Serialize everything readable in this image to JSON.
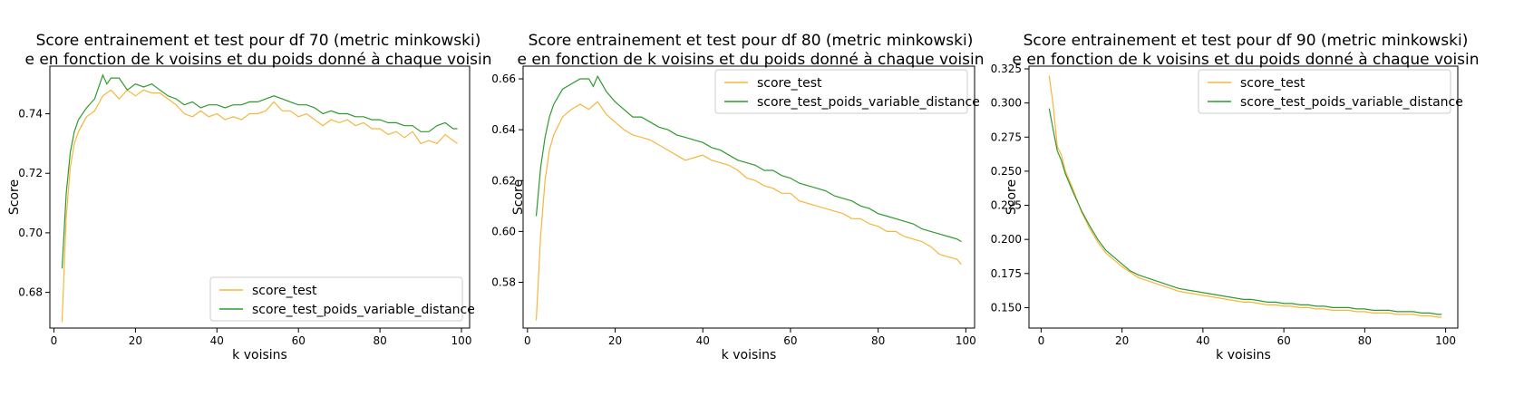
{
  "colors": {
    "score_test": "#f6b63c",
    "score_test_poids": "#2e9a2e"
  },
  "chart_data": [
    {
      "type": "line",
      "title_lines": [
        "Score entrainement et test pour df 70 (metric minkowski)",
        "e en fonction de k voisins et du poids donné à chaque voisin"
      ],
      "xlabel": "k voisins",
      "ylabel": "Score",
      "xlim": [
        -1,
        102
      ],
      "ylim": [
        0.668,
        0.756
      ],
      "xticks": [
        0,
        20,
        40,
        60,
        80,
        100
      ],
      "yticks": [
        0.68,
        0.7,
        0.72,
        0.74
      ],
      "legend_position": "lower-right",
      "series": [
        {
          "name": "score_test",
          "x": [
            2,
            3,
            4,
            5,
            6,
            8,
            10,
            12,
            14,
            16,
            18,
            20,
            22,
            24,
            26,
            28,
            30,
            32,
            34,
            36,
            38,
            40,
            42,
            44,
            46,
            48,
            50,
            52,
            54,
            56,
            58,
            60,
            62,
            64,
            66,
            68,
            70,
            72,
            74,
            76,
            78,
            80,
            82,
            84,
            86,
            88,
            90,
            92,
            94,
            96,
            98,
            99
          ],
          "y": [
            0.67,
            0.705,
            0.722,
            0.73,
            0.734,
            0.739,
            0.741,
            0.746,
            0.748,
            0.745,
            0.748,
            0.746,
            0.748,
            0.747,
            0.747,
            0.745,
            0.743,
            0.74,
            0.739,
            0.741,
            0.739,
            0.74,
            0.738,
            0.739,
            0.738,
            0.74,
            0.74,
            0.741,
            0.744,
            0.741,
            0.741,
            0.739,
            0.74,
            0.738,
            0.736,
            0.738,
            0.737,
            0.738,
            0.736,
            0.737,
            0.735,
            0.735,
            0.733,
            0.734,
            0.732,
            0.734,
            0.73,
            0.731,
            0.73,
            0.733,
            0.731,
            0.73
          ]
        },
        {
          "name": "score_test_poids_variable_distance",
          "x": [
            2,
            3,
            4,
            5,
            6,
            8,
            10,
            12,
            13,
            14,
            16,
            18,
            20,
            22,
            24,
            26,
            28,
            30,
            32,
            34,
            36,
            38,
            40,
            42,
            44,
            46,
            48,
            50,
            52,
            54,
            56,
            58,
            60,
            62,
            64,
            66,
            68,
            70,
            72,
            74,
            76,
            78,
            80,
            82,
            84,
            86,
            88,
            90,
            92,
            94,
            96,
            98,
            99
          ],
          "y": [
            0.688,
            0.713,
            0.727,
            0.734,
            0.738,
            0.742,
            0.745,
            0.753,
            0.75,
            0.752,
            0.752,
            0.748,
            0.75,
            0.749,
            0.75,
            0.748,
            0.746,
            0.745,
            0.743,
            0.744,
            0.742,
            0.743,
            0.743,
            0.742,
            0.743,
            0.743,
            0.744,
            0.744,
            0.745,
            0.746,
            0.745,
            0.744,
            0.743,
            0.743,
            0.742,
            0.74,
            0.741,
            0.74,
            0.74,
            0.739,
            0.739,
            0.738,
            0.738,
            0.737,
            0.737,
            0.736,
            0.736,
            0.734,
            0.734,
            0.736,
            0.737,
            0.735,
            0.735
          ]
        }
      ]
    },
    {
      "type": "line",
      "title_lines": [
        "Score entrainement et test pour df 80 (metric minkowski)",
        "e en fonction de k voisins et du poids donné à chaque voisin"
      ],
      "xlabel": "k voisins",
      "ylabel": "Score",
      "xlim": [
        -1,
        102
      ],
      "ylim": [
        0.562,
        0.665
      ],
      "xticks": [
        0,
        20,
        40,
        60,
        80,
        100
      ],
      "yticks": [
        0.58,
        0.6,
        0.62,
        0.64,
        0.66
      ],
      "legend_position": "upper-right",
      "series": [
        {
          "name": "score_test",
          "x": [
            2,
            3,
            4,
            5,
            6,
            8,
            10,
            12,
            14,
            16,
            18,
            20,
            22,
            24,
            26,
            28,
            30,
            32,
            34,
            36,
            38,
            40,
            42,
            44,
            46,
            48,
            50,
            52,
            54,
            56,
            58,
            60,
            62,
            64,
            66,
            68,
            70,
            72,
            74,
            76,
            78,
            80,
            82,
            84,
            86,
            88,
            90,
            92,
            94,
            96,
            98,
            99
          ],
          "y": [
            0.565,
            0.598,
            0.62,
            0.632,
            0.638,
            0.645,
            0.648,
            0.65,
            0.648,
            0.651,
            0.646,
            0.643,
            0.64,
            0.638,
            0.637,
            0.636,
            0.634,
            0.632,
            0.63,
            0.628,
            0.629,
            0.63,
            0.628,
            0.627,
            0.626,
            0.624,
            0.621,
            0.62,
            0.618,
            0.617,
            0.615,
            0.615,
            0.612,
            0.611,
            0.61,
            0.609,
            0.608,
            0.607,
            0.605,
            0.605,
            0.603,
            0.602,
            0.6,
            0.6,
            0.598,
            0.597,
            0.596,
            0.594,
            0.591,
            0.59,
            0.589,
            0.587
          ]
        },
        {
          "name": "score_test_poids_variable_distance",
          "x": [
            2,
            3,
            4,
            5,
            6,
            8,
            10,
            12,
            14,
            15,
            16,
            18,
            20,
            22,
            24,
            26,
            28,
            30,
            32,
            34,
            36,
            38,
            40,
            42,
            44,
            46,
            48,
            50,
            52,
            54,
            56,
            58,
            60,
            62,
            64,
            66,
            68,
            70,
            72,
            74,
            76,
            78,
            80,
            82,
            84,
            86,
            88,
            90,
            92,
            94,
            96,
            98,
            99
          ],
          "y": [
            0.606,
            0.625,
            0.637,
            0.645,
            0.65,
            0.656,
            0.658,
            0.66,
            0.66,
            0.657,
            0.661,
            0.655,
            0.651,
            0.648,
            0.645,
            0.645,
            0.643,
            0.641,
            0.64,
            0.638,
            0.637,
            0.636,
            0.635,
            0.633,
            0.632,
            0.63,
            0.628,
            0.627,
            0.626,
            0.624,
            0.624,
            0.622,
            0.621,
            0.619,
            0.618,
            0.617,
            0.616,
            0.614,
            0.613,
            0.612,
            0.61,
            0.609,
            0.607,
            0.606,
            0.605,
            0.604,
            0.603,
            0.601,
            0.6,
            0.599,
            0.598,
            0.597,
            0.596
          ]
        }
      ]
    },
    {
      "type": "line",
      "title_lines": [
        "Score entrainement et test pour df 90 (metric minkowski)",
        "e en fonction de k voisins et du poids donné à chaque voisin"
      ],
      "xlabel": "k voisins",
      "ylabel": "Score",
      "xlim": [
        -3,
        103
      ],
      "ylim": [
        0.135,
        0.327
      ],
      "xticks": [
        0,
        20,
        40,
        60,
        80,
        100
      ],
      "yticks": [
        0.15,
        0.175,
        0.2,
        0.225,
        0.25,
        0.275,
        0.3,
        0.325
      ],
      "legend_position": "upper-right",
      "series": [
        {
          "name": "score_test",
          "x": [
            2,
            3,
            4,
            5,
            6,
            8,
            10,
            12,
            14,
            16,
            18,
            20,
            22,
            24,
            26,
            28,
            30,
            32,
            34,
            36,
            38,
            40,
            42,
            44,
            46,
            48,
            50,
            52,
            54,
            56,
            58,
            60,
            62,
            64,
            66,
            68,
            70,
            72,
            74,
            76,
            78,
            80,
            82,
            84,
            86,
            88,
            90,
            92,
            94,
            96,
            98,
            99
          ],
          "y": [
            0.32,
            0.298,
            0.268,
            0.262,
            0.25,
            0.236,
            0.22,
            0.208,
            0.198,
            0.19,
            0.185,
            0.18,
            0.176,
            0.172,
            0.17,
            0.168,
            0.166,
            0.164,
            0.162,
            0.161,
            0.16,
            0.159,
            0.158,
            0.157,
            0.156,
            0.155,
            0.154,
            0.154,
            0.153,
            0.152,
            0.152,
            0.151,
            0.151,
            0.15,
            0.15,
            0.149,
            0.149,
            0.148,
            0.148,
            0.148,
            0.147,
            0.147,
            0.146,
            0.146,
            0.146,
            0.145,
            0.145,
            0.145,
            0.144,
            0.144,
            0.143,
            0.143
          ]
        },
        {
          "name": "score_test_poids_variable_distance",
          "x": [
            2,
            3,
            4,
            5,
            6,
            8,
            10,
            12,
            14,
            16,
            18,
            20,
            22,
            24,
            26,
            28,
            30,
            32,
            34,
            36,
            38,
            40,
            42,
            44,
            46,
            48,
            50,
            52,
            54,
            56,
            58,
            60,
            62,
            64,
            66,
            68,
            70,
            72,
            74,
            76,
            78,
            80,
            82,
            84,
            86,
            88,
            90,
            92,
            94,
            96,
            98,
            99
          ],
          "y": [
            0.296,
            0.28,
            0.265,
            0.258,
            0.248,
            0.234,
            0.221,
            0.21,
            0.2,
            0.192,
            0.187,
            0.182,
            0.177,
            0.174,
            0.172,
            0.17,
            0.168,
            0.166,
            0.164,
            0.163,
            0.162,
            0.161,
            0.16,
            0.159,
            0.158,
            0.157,
            0.156,
            0.156,
            0.155,
            0.154,
            0.154,
            0.153,
            0.153,
            0.152,
            0.152,
            0.151,
            0.151,
            0.15,
            0.15,
            0.15,
            0.149,
            0.149,
            0.148,
            0.148,
            0.148,
            0.147,
            0.147,
            0.147,
            0.146,
            0.146,
            0.145,
            0.145
          ]
        }
      ]
    }
  ]
}
